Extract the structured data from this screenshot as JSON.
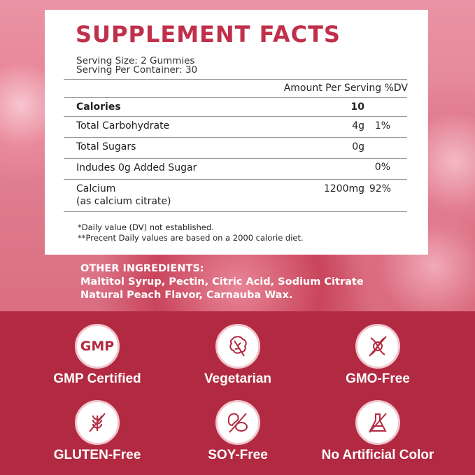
{
  "facts": {
    "title": "SUPPLEMENT FACTS",
    "serving_size": "Serving Size: 2 Gummies",
    "servings_per_container": "Serving Per Container: 30",
    "header": "Amount Per Serving %DV",
    "rows": [
      {
        "name": "Calories",
        "amount": "10",
        "dv": ""
      },
      {
        "name": "Total Carbohydrate",
        "amount": "4g",
        "dv": "1%"
      },
      {
        "name": "Total Sugars",
        "amount": "0g",
        "dv": ""
      },
      {
        "name": "Indudes 0g Added Sugar",
        "amount": "",
        "dv": "0%"
      },
      {
        "name": "Calcium",
        "sub": "(as calcium citrate)",
        "amount": "1200mg",
        "dv": "92%"
      }
    ],
    "footnote1": "*Daily value (DV) not established.",
    "footnote2": "**Precent Daily values are based on a 2000 calorie diet."
  },
  "ingredients": {
    "heading": "OTHER INGREDIENTS:",
    "line1": "Maltitol Syrup, Pectin, Citric Acid, Sodium Citrate",
    "line2": "Natural Peach Flavor, Carnauba Wax."
  },
  "badges": [
    {
      "label": "GMP Certified",
      "icon": "gmp-icon",
      "icon_text": "GMP"
    },
    {
      "label": "Vegetarian",
      "icon": "leaf-icon"
    },
    {
      "label": "GMO-Free",
      "icon": "no-dna-icon"
    },
    {
      "label": "GLUTEN-Free",
      "icon": "no-wheat-icon"
    },
    {
      "label": "SOY-Free",
      "icon": "no-soybean-icon"
    },
    {
      "label": "No Artificial Color",
      "icon": "no-flask-icon"
    }
  ],
  "colors": {
    "accent": "#c0304a",
    "band": "#b22a41"
  }
}
